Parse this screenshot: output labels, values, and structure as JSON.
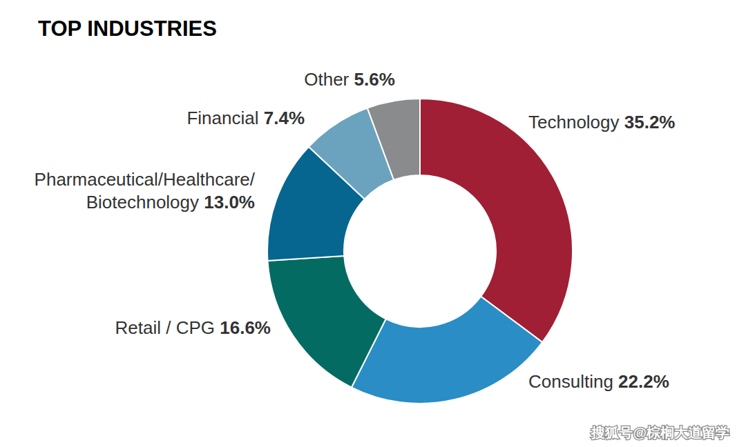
{
  "chart_data": {
    "type": "pie",
    "title": "TOP INDUSTRIES",
    "categories": [
      "Technology",
      "Consulting",
      "Retail / CPG",
      "Pharmaceutical/Healthcare/Biotechnology",
      "Financial",
      "Other"
    ],
    "values": [
      35.2,
      22.2,
      16.6,
      13.0,
      7.4,
      5.6
    ],
    "value_labels": [
      "35.2%",
      "22.2%",
      "16.6%",
      "13.0%",
      "7.4%",
      "5.6%"
    ],
    "colors": [
      "#a01f35",
      "#2a8dc5",
      "#046b63",
      "#06668f",
      "#6ba3bf",
      "#8a8b8d"
    ],
    "data_labels": true,
    "watermark": "搜狐号@棕榈大道留学"
  }
}
